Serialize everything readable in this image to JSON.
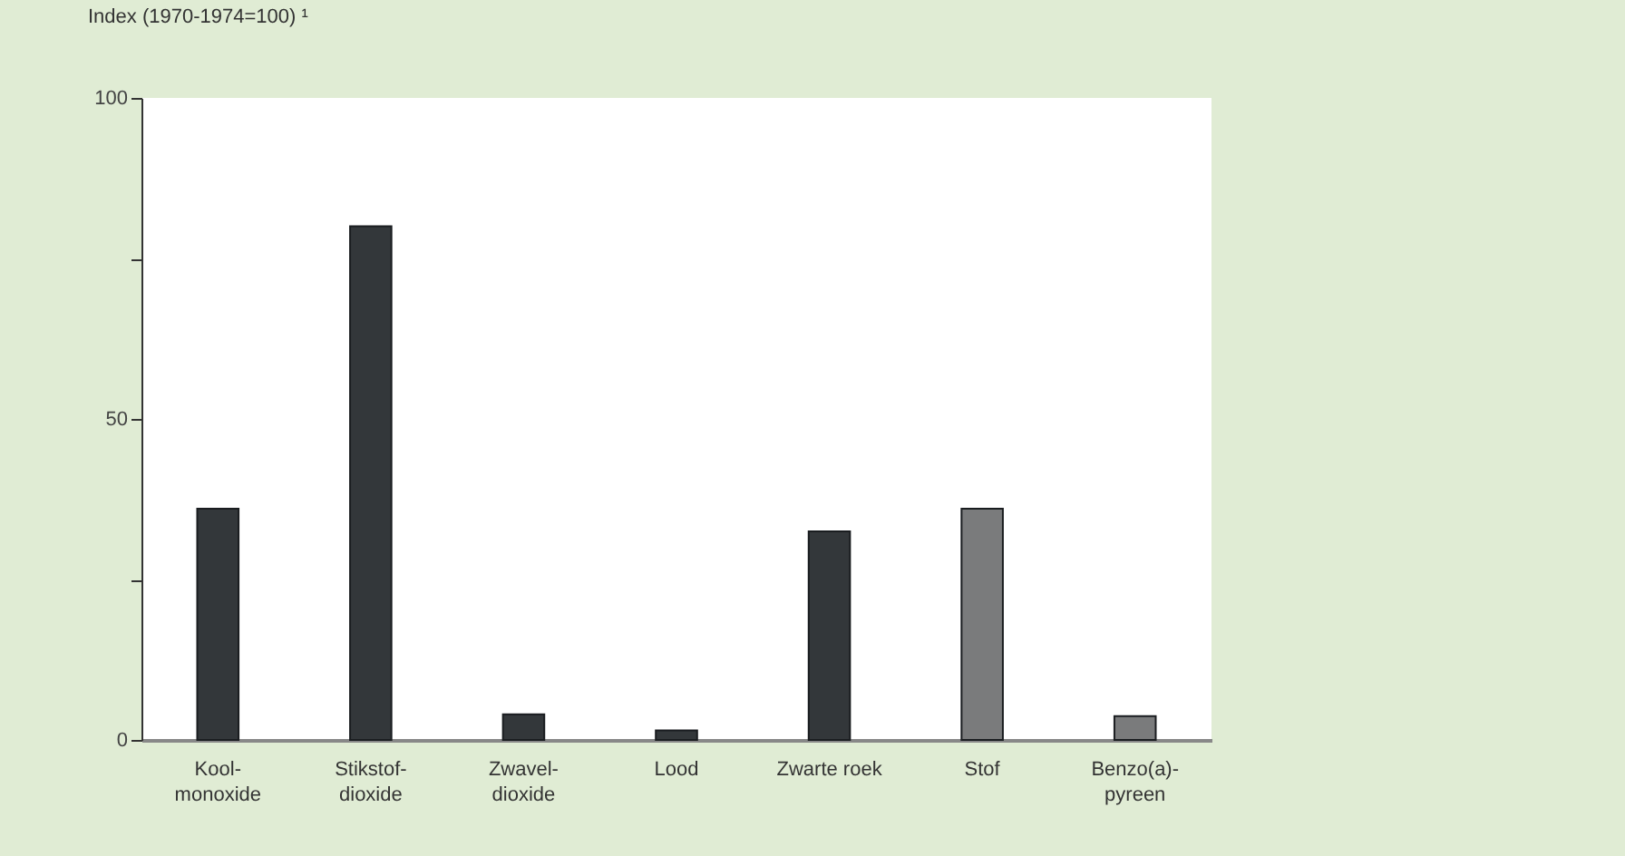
{
  "chart_data": {
    "type": "bar",
    "ylabel": "Index (1970-1974=100) ¹",
    "categories": [
      "Kool-monoxide",
      "Stikstof-dioxide",
      "Zwavel-dioxide",
      "Lood",
      "Zwarte roek",
      "Stof",
      "Benzo(a)-pyreen"
    ],
    "values": [
      36,
      80,
      4,
      1.5,
      32.5,
      36,
      3.7
    ],
    "colors": [
      "#33373a",
      "#33373a",
      "#33373a",
      "#33373a",
      "#33373a",
      "#7a7b7c",
      "#7a7b7c"
    ],
    "ylim": [
      0,
      100
    ],
    "yticks": [
      0,
      {
        "value": 25,
        "label": null
      },
      50,
      {
        "value": 75,
        "label": null
      },
      100
    ],
    "grid": false
  }
}
